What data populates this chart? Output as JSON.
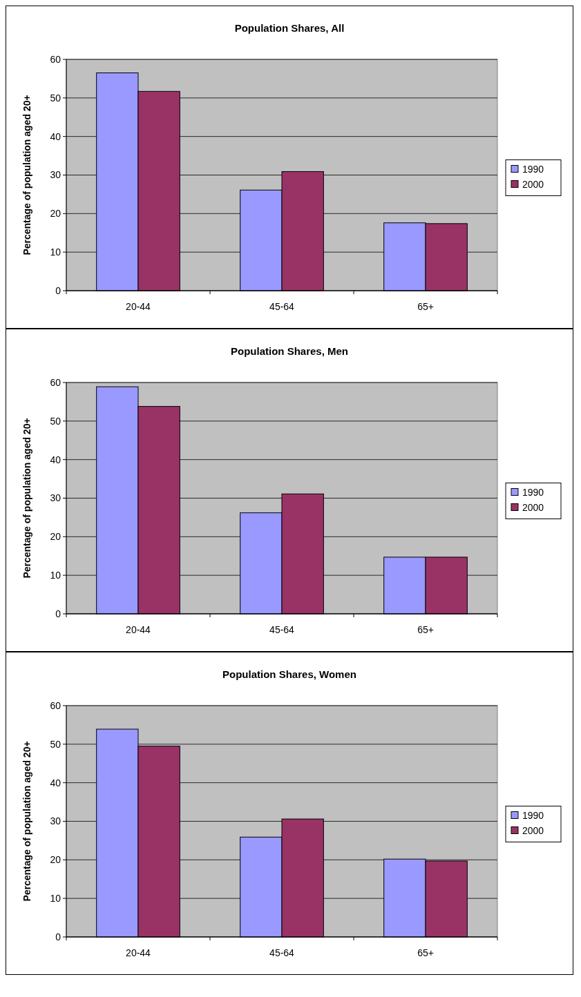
{
  "chart_data": [
    {
      "type": "bar",
      "title": "Population Shares, All",
      "ylabel": "Percentage of population aged 20+",
      "categories": [
        "20-44",
        "45-64",
        "65+"
      ],
      "series": [
        {
          "name": "1990",
          "color": "#9999ff",
          "values": [
            56.5,
            26.1,
            17.6
          ]
        },
        {
          "name": "2000",
          "color": "#993366",
          "values": [
            51.7,
            30.9,
            17.4
          ]
        }
      ],
      "ylim": [
        0,
        60
      ],
      "yticks": [
        0,
        10,
        20,
        30,
        40,
        50,
        60
      ],
      "grid": "y",
      "legend": "right"
    },
    {
      "type": "bar",
      "title": "Population Shares, Men",
      "ylabel": "Percentage of population aged 20+",
      "categories": [
        "20-44",
        "45-64",
        "65+"
      ],
      "series": [
        {
          "name": "1990",
          "color": "#9999ff",
          "values": [
            58.9,
            26.2,
            14.7
          ]
        },
        {
          "name": "2000",
          "color": "#993366",
          "values": [
            53.8,
            31.1,
            14.7
          ]
        }
      ],
      "ylim": [
        0,
        60
      ],
      "yticks": [
        0,
        10,
        20,
        30,
        40,
        50,
        60
      ],
      "grid": "y",
      "legend": "right"
    },
    {
      "type": "bar",
      "title": "Population Shares, Women",
      "ylabel": "Percentage of population aged 20+",
      "categories": [
        "20-44",
        "45-64",
        "65+"
      ],
      "series": [
        {
          "name": "1990",
          "color": "#9999ff",
          "values": [
            53.9,
            25.9,
            20.2
          ]
        },
        {
          "name": "2000",
          "color": "#993366",
          "values": [
            49.5,
            30.6,
            19.7
          ]
        }
      ],
      "ylim": [
        0,
        60
      ],
      "yticks": [
        0,
        10,
        20,
        30,
        40,
        50,
        60
      ],
      "grid": "y",
      "legend": "right"
    }
  ]
}
